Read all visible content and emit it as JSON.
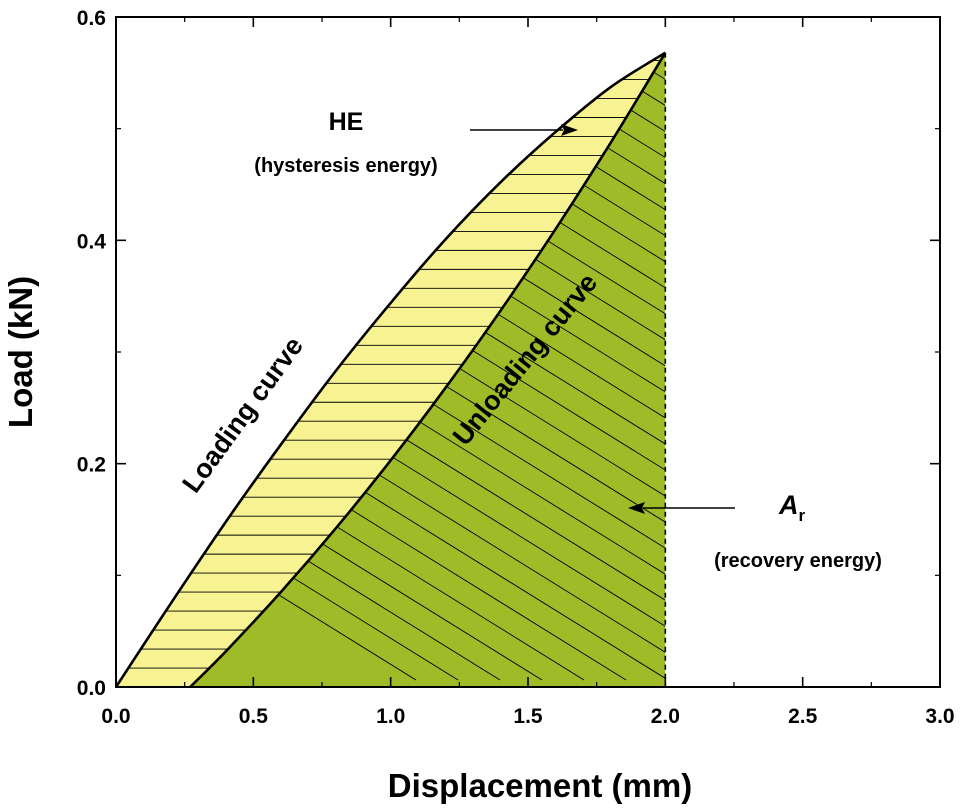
{
  "chart_data": {
    "type": "area",
    "xlabel": "Displacement (mm)",
    "ylabel": "Load (kN)",
    "xlim": [
      0.0,
      3.0
    ],
    "ylim": [
      0.0,
      0.6
    ],
    "x_ticks": [
      "0.0",
      "0.5",
      "1.0",
      "1.5",
      "2.0",
      "2.5",
      "3.0"
    ],
    "y_ticks": [
      "0.0",
      "0.2",
      "0.4",
      "0.6"
    ],
    "series": [
      {
        "name": "Loading curve",
        "x": [
          0.0,
          0.2,
          0.4,
          0.6,
          0.8,
          1.0,
          1.2,
          1.4,
          1.6,
          1.8,
          2.0
        ],
        "y": [
          0.0,
          0.075,
          0.148,
          0.217,
          0.283,
          0.344,
          0.401,
          0.452,
          0.497,
          0.537,
          0.568
        ]
      },
      {
        "name": "Unloading curve",
        "x": [
          0.27,
          0.4,
          0.6,
          0.8,
          1.0,
          1.2,
          1.4,
          1.6,
          1.8,
          2.0
        ],
        "y": [
          0.0,
          0.032,
          0.085,
          0.142,
          0.203,
          0.268,
          0.337,
          0.41,
          0.487,
          0.568
        ]
      }
    ],
    "regions": [
      {
        "name": "HE",
        "description": "hysteresis energy",
        "between": [
          "Loading curve",
          "Unloading curve"
        ],
        "color": "#F8F392",
        "hatch": "horizontal"
      },
      {
        "name": "Ar",
        "description": "recovery energy",
        "under": "Unloading curve",
        "color": "#A0BB28",
        "hatch": "diagonal"
      }
    ],
    "reference_line": {
      "x": 2.0,
      "style": "dashed"
    },
    "annotations": [
      {
        "title": "HE",
        "subtitle": "(hysteresis energy)"
      },
      {
        "title": "A",
        "subscript": "r",
        "subtitle": "(recovery energy)"
      }
    ],
    "curve_labels": {
      "loading": "Loading curve",
      "unloading": "Unloading curve"
    },
    "grid": false,
    "colors": {
      "hysteresis": "#F8F392",
      "recovery": "#A0BB28",
      "line": "#000000"
    }
  }
}
